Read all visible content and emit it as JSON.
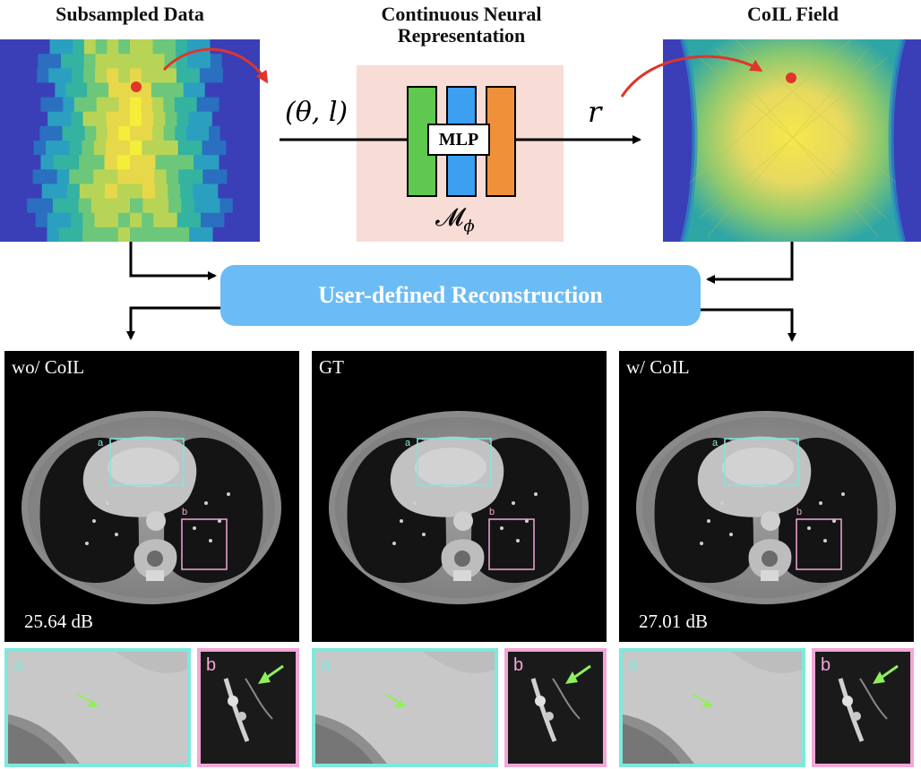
{
  "top": {
    "subsampled_title": "Subsampled Data",
    "cnr_title_line1": "Continuous Neural",
    "cnr_title_line2": "Representation",
    "coil_title": "CoIL Field"
  },
  "network": {
    "input_label": "(θ, l)",
    "output_label": "r",
    "mlp_label": "MLP",
    "model_symbol": "𝓜",
    "model_subscript": "ϕ",
    "layer_colors": [
      "#5ec94e",
      "#3d9ff0",
      "#f0913a"
    ]
  },
  "reconstruction_box": {
    "label": "User-defined Reconstruction",
    "color": "#6bbcf5"
  },
  "panels": [
    {
      "label": "wo/ CoIL",
      "metric": "25.64 dB"
    },
    {
      "label": "GT",
      "metric": ""
    },
    {
      "label": "w/ CoIL",
      "metric": "27.01 dB"
    }
  ],
  "roi": {
    "a": "a",
    "b": "b",
    "a_color": "#7fe8dc",
    "b_color": "#f2a7d6"
  },
  "zooms": {
    "a_letter": "a",
    "b_letter": "b",
    "arrow_color": "#8ef05a"
  },
  "colors": {
    "pointer_arrow": "#e0352b",
    "dot": "#e0352b",
    "cnr_bg": "#f8dcd6"
  }
}
